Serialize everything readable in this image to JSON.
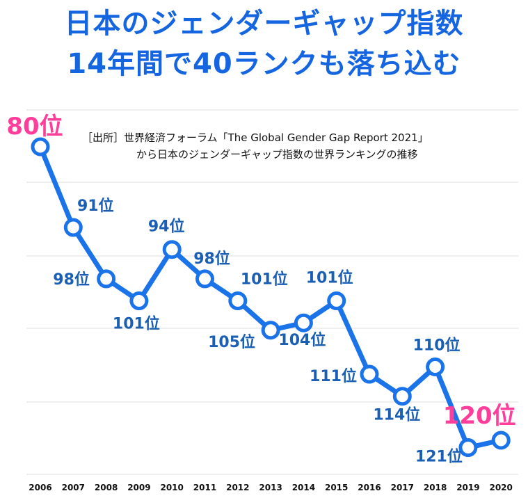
{
  "title": {
    "line1": "日本のジェンダーギャップ指数",
    "line2": "14年間で40ランクも落ち込む"
  },
  "source": {
    "line1": "［出所］世界経済フォーラム「The Global Gender Gap Report 2021」",
    "line2": "から日本のジェンダーギャップ指数の世界ランキングの推移"
  },
  "colors": {
    "line": "#1a73e8",
    "label": "#1a5fb4",
    "highlight": "#ff3d9a",
    "grid": "#dddddd"
  },
  "chart_data": {
    "type": "line",
    "title": "日本のジェンダーギャップ指数 14年間で40ランクも落ち込む",
    "xlabel": "",
    "ylabel": "",
    "grid": true,
    "y_inverted": true,
    "x": [
      "2006",
      "2007",
      "2008",
      "2009",
      "2010",
      "2011",
      "2012",
      "2013",
      "2014",
      "2015",
      "2016",
      "2017",
      "2018",
      "2019",
      "2020"
    ],
    "series": [
      {
        "values": [
          80,
          91,
          98,
          101,
          94,
          98,
          101,
          105,
          104,
          101,
          111,
          114,
          110,
          121,
          120
        ],
        "labels": [
          "80位",
          "91位",
          "98位",
          "101位",
          "94位",
          "98位",
          "101位",
          "105位",
          "104位",
          "101位",
          "111位",
          "114位",
          "110位",
          "121位",
          "120位"
        ]
      }
    ],
    "highlighted_labels": [
      0,
      14
    ]
  }
}
